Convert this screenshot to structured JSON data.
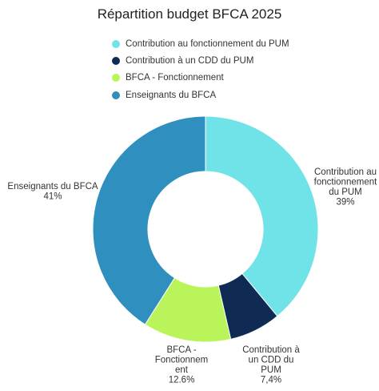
{
  "chart_data": {
    "type": "pie",
    "title": "Répartition budget BFCA 2025",
    "legend_position": "top",
    "series": [
      {
        "name": "Contribution au fonctionnement du PUM",
        "value": 39,
        "label_lines": [
          "Contribution au",
          "fonctionnement",
          "du PUM",
          "39%"
        ],
        "color": "#6fe3e8"
      },
      {
        "name": "Contribution à un CDD du PUM",
        "value": 7.4,
        "label_lines": [
          "Contribution à",
          "un CDD du",
          "PUM",
          "7,4%"
        ],
        "color": "#0f2b53"
      },
      {
        "name": "BFCA - Fonctionnement",
        "value": 12.6,
        "label_lines": [
          "BFCA -",
          "Fonctionnem",
          "ent",
          "12.6%"
        ],
        "color": "#b9f55a"
      },
      {
        "name": "Enseignants du BFCA",
        "value": 41,
        "label_lines": [
          "Enseignants du BFCA",
          "41%"
        ],
        "color": "#2f8fbf"
      }
    ]
  }
}
